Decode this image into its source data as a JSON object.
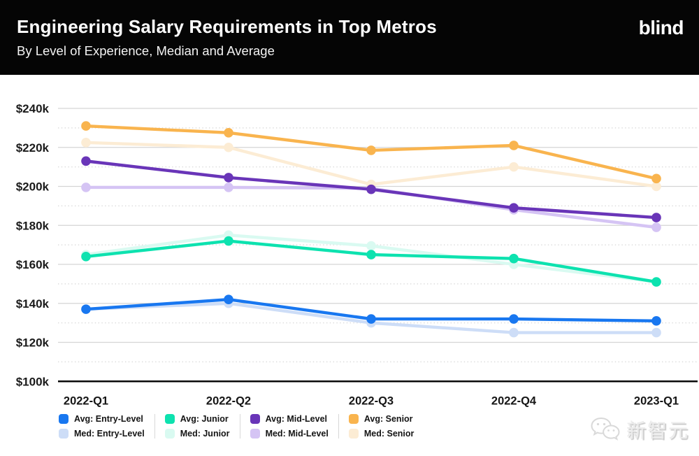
{
  "header": {
    "title": "Engineering Salary Requirements in Top Metros",
    "subtitle": "By Level of Experience, Median and Average",
    "logo": "blind"
  },
  "watermark": {
    "text": "新智元"
  },
  "chart_data": {
    "type": "line",
    "title": "Engineering Salary Requirements in Top Metros",
    "subtitle": "By Level of Experience, Median and Average",
    "categories": [
      "2022-Q1",
      "2022-Q2",
      "2022-Q3",
      "2022-Q4",
      "2023-Q1"
    ],
    "series": [
      {
        "name": "Avg: Entry-Level",
        "tier": "avg",
        "color": "#1877f0",
        "values": [
          137,
          142,
          132,
          132,
          131
        ]
      },
      {
        "name": "Med: Entry-Level",
        "tier": "med",
        "color": "#cdddf7",
        "values": [
          137,
          140,
          130,
          125,
          125
        ]
      },
      {
        "name": "Avg: Junior",
        "tier": "avg",
        "color": "#0de2af",
        "values": [
          164,
          172,
          165,
          163,
          151
        ]
      },
      {
        "name": "Med: Junior",
        "tier": "med",
        "color": "#d9faf1",
        "values": [
          165,
          175,
          169.5,
          160,
          151
        ]
      },
      {
        "name": "Avg: Mid-Level",
        "tier": "avg",
        "color": "#6935b8",
        "values": [
          213,
          204.5,
          198.5,
          189,
          184
        ]
      },
      {
        "name": "Med: Mid-Level",
        "tier": "med",
        "color": "#d5c4f4",
        "values": [
          199.5,
          199.5,
          199,
          188,
          179
        ]
      },
      {
        "name": "Avg: Senior",
        "tier": "avg",
        "color": "#f9b44e",
        "values": [
          231,
          227.5,
          218.5,
          221,
          204
        ]
      },
      {
        "name": "Med: Senior",
        "tier": "med",
        "color": "#fcecd4",
        "values": [
          222.5,
          220,
          201,
          210,
          200
        ]
      }
    ],
    "y_ticks": [
      240,
      220,
      200,
      180,
      160,
      140,
      120,
      100
    ],
    "y_tick_labels": [
      "$240k",
      "$220k",
      "$200k",
      "$180k",
      "$160k",
      "$140k",
      "$120k",
      "$100k"
    ],
    "y_unit": "USD thousands per year",
    "ylim": [
      100,
      248
    ],
    "grid": "solid gray lines every $20k, dotted lines every intermediate $10k, black baseline at $100k",
    "legend_position": "bottom"
  }
}
